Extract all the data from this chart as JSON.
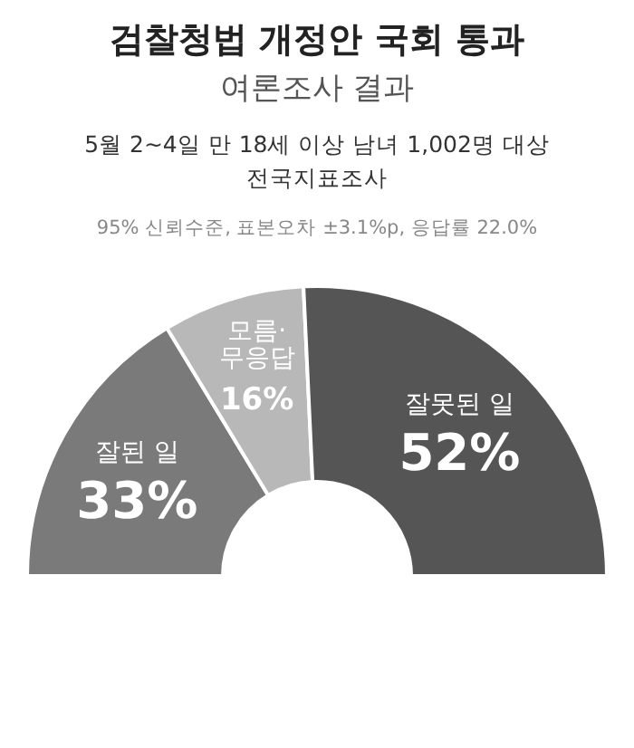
{
  "chart_data": {
    "type": "donut",
    "title": "검찰청법 개정안 국회 통과",
    "subtitle": "여론조사 결과",
    "annotations": [
      "5월 2~4일 만 18세 이상 남녀 1,002명 대상 전국지표조사",
      "95% 신뢰수준, 표본오차 ±3.1%p, 응답률 22.0%"
    ],
    "categories": [
      "잘된 일",
      "모름·무응답",
      "잘못된 일"
    ],
    "values": [
      33,
      16,
      52
    ],
    "value_labels": [
      "33%",
      "16%",
      "52%"
    ],
    "colors": [
      "#7a7a7a",
      "#b8b8b8",
      "#555555"
    ]
  }
}
